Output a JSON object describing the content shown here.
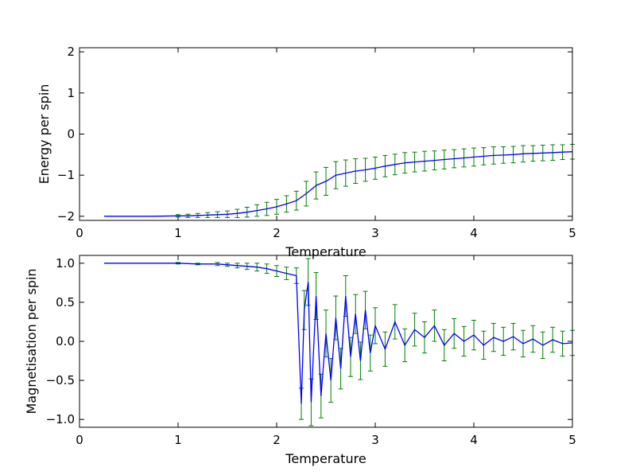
{
  "chart_data": [
    {
      "type": "line",
      "title": "",
      "xlabel": "Temperature",
      "ylabel": "Energy per spin",
      "xlim": [
        0,
        5
      ],
      "ylim": [
        -2.1,
        2.1
      ],
      "xticks": [
        "0",
        "1",
        "2",
        "3",
        "4",
        "5"
      ],
      "yticks": [
        "−2",
        "−1",
        "0",
        "1",
        "2"
      ],
      "grid": false,
      "legend": "none",
      "series_color": "#0000ff",
      "errorbar_color": "#008000",
      "x": [
        0.25,
        0.5,
        0.75,
        1.0,
        1.1,
        1.2,
        1.3,
        1.4,
        1.5,
        1.6,
        1.7,
        1.8,
        1.9,
        2.0,
        2.1,
        2.2,
        2.3,
        2.4,
        2.5,
        2.6,
        2.7,
        2.8,
        2.9,
        3.0,
        3.1,
        3.2,
        3.3,
        3.4,
        3.5,
        3.6,
        3.7,
        3.8,
        3.9,
        4.0,
        4.1,
        4.2,
        4.3,
        4.4,
        4.5,
        4.6,
        4.7,
        4.8,
        4.9,
        5.0
      ],
      "y": [
        -2.0,
        -2.0,
        -2.0,
        -1.99,
        -1.99,
        -1.98,
        -1.97,
        -1.96,
        -1.95,
        -1.93,
        -1.9,
        -1.86,
        -1.82,
        -1.77,
        -1.7,
        -1.62,
        -1.45,
        -1.25,
        -1.15,
        -1.0,
        -0.95,
        -0.9,
        -0.87,
        -0.83,
        -0.78,
        -0.74,
        -0.7,
        -0.68,
        -0.66,
        -0.64,
        -0.62,
        -0.6,
        -0.58,
        -0.56,
        -0.54,
        -0.52,
        -0.51,
        -0.5,
        -0.48,
        -0.47,
        -0.46,
        -0.45,
        -0.44,
        -0.43
      ],
      "err": [
        0.0,
        0.0,
        0.0,
        0.03,
        0.04,
        0.05,
        0.06,
        0.07,
        0.08,
        0.1,
        0.12,
        0.14,
        0.16,
        0.18,
        0.2,
        0.23,
        0.3,
        0.33,
        0.34,
        0.33,
        0.32,
        0.3,
        0.28,
        0.27,
        0.26,
        0.25,
        0.25,
        0.24,
        0.24,
        0.23,
        0.23,
        0.22,
        0.22,
        0.22,
        0.21,
        0.21,
        0.2,
        0.2,
        0.2,
        0.19,
        0.19,
        0.19,
        0.18,
        0.18
      ]
    },
    {
      "type": "line",
      "title": "",
      "xlabel": "Temperature",
      "ylabel": "Magnetisation per spin",
      "xlim": [
        0,
        5
      ],
      "ylim": [
        -1.1,
        1.1
      ],
      "xticks": [
        "0",
        "1",
        "2",
        "3",
        "4",
        "5"
      ],
      "yticks": [
        "−1.0",
        "−0.5",
        "0.0",
        "0.5",
        "1.0"
      ],
      "grid": false,
      "legend": "none",
      "series_color": "#0000ff",
      "errorbar_color": "#008000",
      "x": [
        0.25,
        0.5,
        0.75,
        1.0,
        1.2,
        1.4,
        1.5,
        1.6,
        1.7,
        1.8,
        1.9,
        2.0,
        2.1,
        2.2,
        2.25,
        2.28,
        2.32,
        2.35,
        2.4,
        2.45,
        2.5,
        2.55,
        2.6,
        2.65,
        2.7,
        2.75,
        2.8,
        2.85,
        2.9,
        2.95,
        3.0,
        3.1,
        3.2,
        3.3,
        3.4,
        3.5,
        3.6,
        3.7,
        3.8,
        3.9,
        4.0,
        4.1,
        4.2,
        4.3,
        4.4,
        4.5,
        4.6,
        4.7,
        4.8,
        4.9,
        5.0
      ],
      "y": [
        1.0,
        1.0,
        1.0,
        1.0,
        0.99,
        0.99,
        0.98,
        0.97,
        0.96,
        0.95,
        0.93,
        0.9,
        0.87,
        0.84,
        -0.8,
        0.4,
        0.76,
        -0.78,
        0.58,
        -0.7,
        0.1,
        -0.5,
        0.3,
        -0.35,
        0.58,
        -0.2,
        0.35,
        -0.25,
        0.4,
        -0.15,
        0.2,
        -0.1,
        0.25,
        -0.05,
        0.15,
        0.05,
        0.2,
        -0.05,
        0.1,
        0.0,
        0.08,
        -0.05,
        0.05,
        0.0,
        0.06,
        -0.03,
        0.03,
        -0.05,
        0.02,
        -0.03,
        -0.02
      ],
      "err": [
        0.0,
        0.0,
        0.0,
        0.01,
        0.01,
        0.02,
        0.02,
        0.03,
        0.04,
        0.05,
        0.06,
        0.07,
        0.08,
        0.1,
        0.2,
        0.25,
        0.3,
        0.3,
        0.3,
        0.28,
        0.3,
        0.28,
        0.28,
        0.26,
        0.26,
        0.25,
        0.25,
        0.24,
        0.24,
        0.23,
        0.23,
        0.22,
        0.22,
        0.21,
        0.21,
        0.2,
        0.2,
        0.2,
        0.19,
        0.19,
        0.19,
        0.18,
        0.18,
        0.18,
        0.17,
        0.17,
        0.17,
        0.17,
        0.16,
        0.16,
        0.16
      ]
    }
  ]
}
